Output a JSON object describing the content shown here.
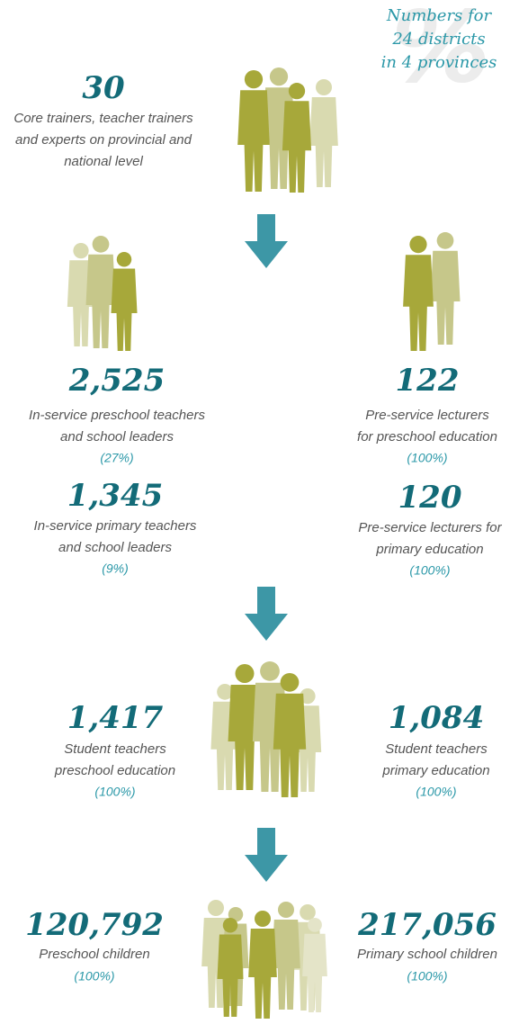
{
  "header": {
    "lines": [
      "Numbers for",
      "24 districts",
      "in 4 provinces"
    ]
  },
  "blocks": [
    {
      "number": "30",
      "lines": [
        "Core trainers, teacher trainers",
        "and experts on provincial and",
        "national level"
      ]
    },
    {
      "number": "2,525",
      "lines": [
        "In-service preschool teachers",
        "and school leaders"
      ],
      "percent": "(27%)"
    },
    {
      "number": "122",
      "lines": [
        "Pre-service lecturers",
        "for preschool education"
      ],
      "percent": "(100%)"
    },
    {
      "number": "1,345",
      "lines": [
        "In-service primary teachers",
        "and school leaders"
      ],
      "percent": "(9%)"
    },
    {
      "number": "120",
      "lines": [
        "Pre-service lecturers for",
        "primary education"
      ],
      "percent": "(100%)"
    },
    {
      "number": "1,417",
      "lines": [
        "Student teachers",
        "preschool education"
      ],
      "percent": "(100%)"
    },
    {
      "number": "1,084",
      "lines": [
        "Student teachers",
        "primary education"
      ],
      "percent": "(100%)"
    },
    {
      "number": "120,792",
      "lines": [
        "Preschool children"
      ],
      "percent": "(100%)"
    },
    {
      "number": "217,056",
      "lines": [
        "Primary school children"
      ],
      "percent": "(100%)"
    }
  ]
}
